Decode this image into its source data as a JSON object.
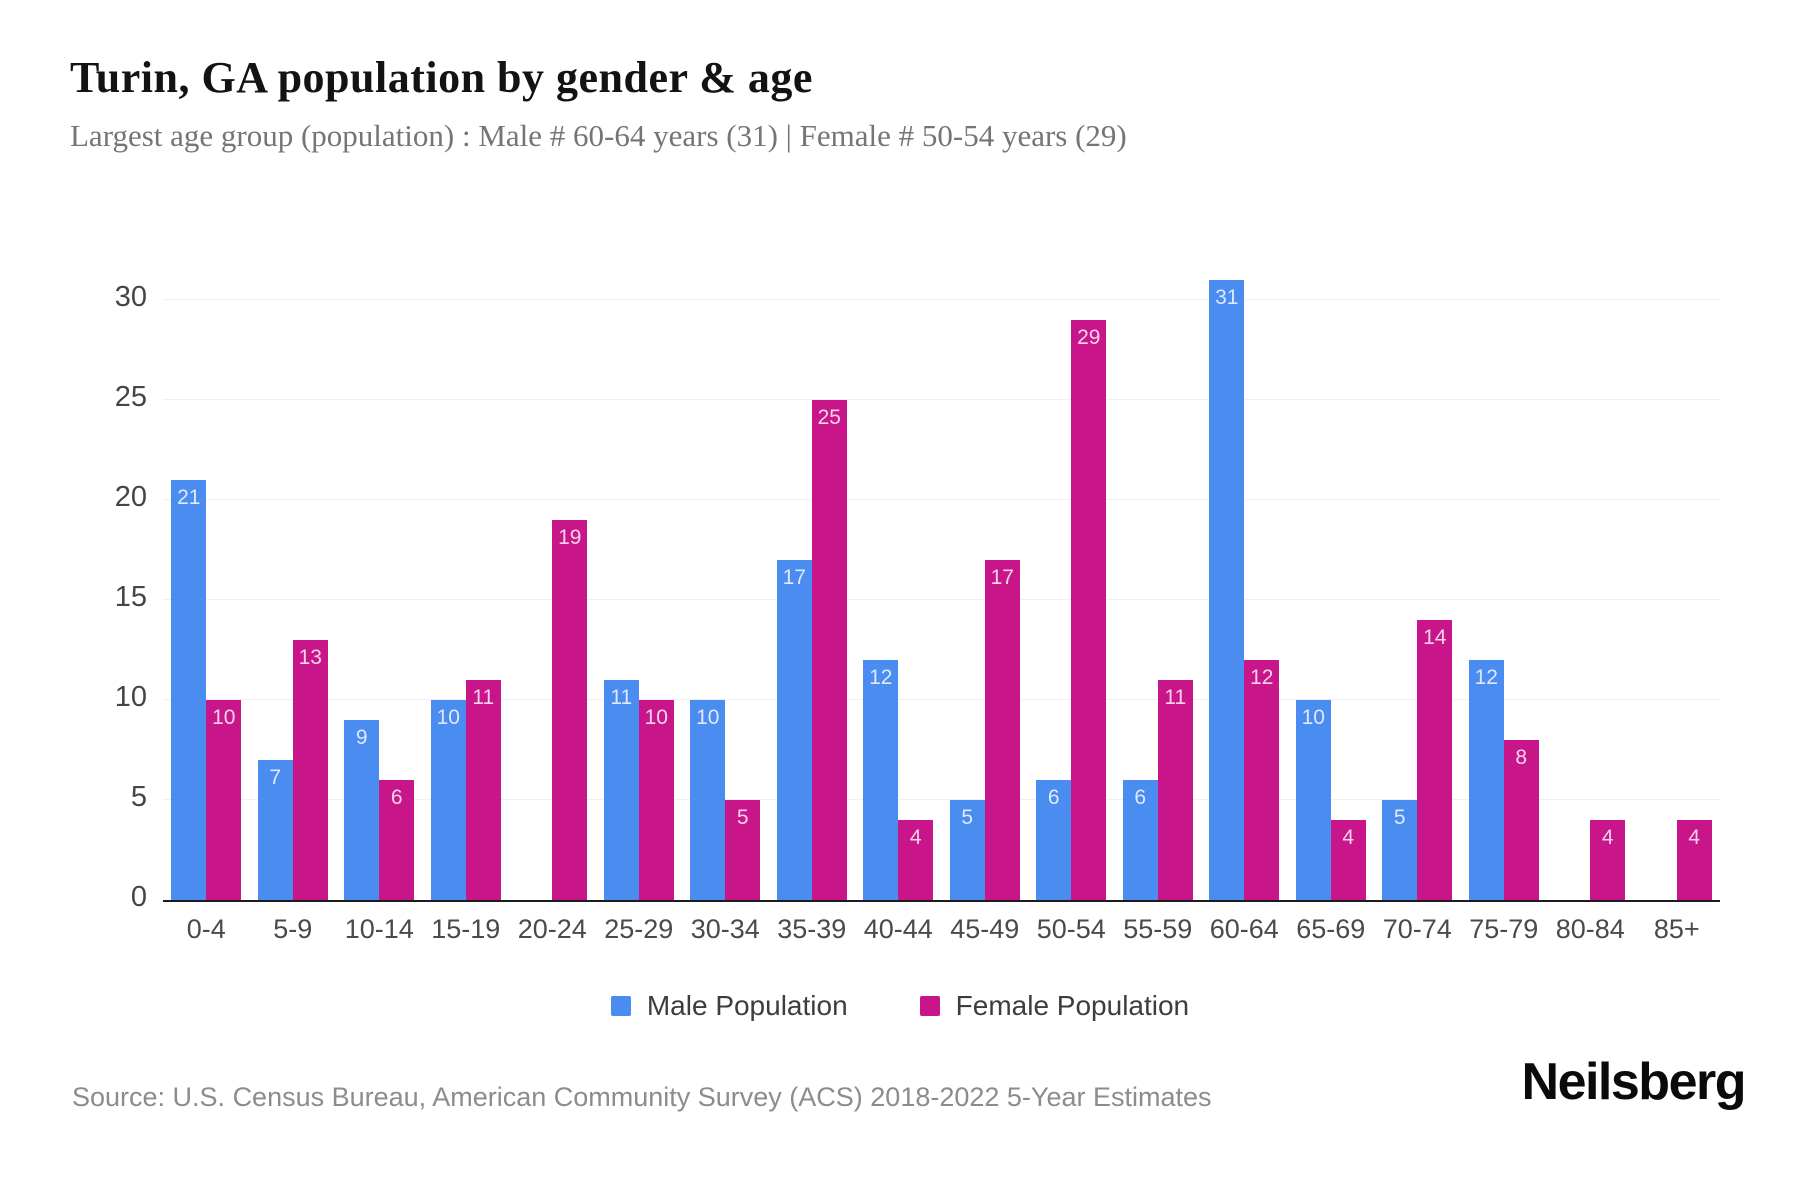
{
  "header": {
    "title": "Turin, GA population by gender & age",
    "subtitle": "Largest age group (population) : Male # 60-64 years (31) | Female # 50-54 years (29)"
  },
  "chart_data": {
    "type": "bar",
    "title": "Turin, GA population by gender & age",
    "categories": [
      "0-4",
      "5-9",
      "10-14",
      "15-19",
      "20-24",
      "25-29",
      "30-34",
      "35-39",
      "40-44",
      "45-49",
      "50-54",
      "55-59",
      "60-64",
      "65-69",
      "70-74",
      "75-79",
      "80-84",
      "85+"
    ],
    "series": [
      {
        "name": "Male Population",
        "color": "#4a8cf0",
        "values": [
          21,
          7,
          9,
          10,
          0,
          11,
          10,
          17,
          12,
          5,
          6,
          6,
          31,
          10,
          5,
          12,
          0,
          0
        ]
      },
      {
        "name": "Female Population",
        "color": "#c9158a",
        "values": [
          10,
          13,
          6,
          11,
          19,
          10,
          5,
          25,
          4,
          17,
          29,
          11,
          12,
          4,
          14,
          8,
          4,
          4
        ]
      }
    ],
    "xlabel": "",
    "ylabel": "",
    "ylim": [
      0,
      30
    ],
    "yticks": [
      0,
      5,
      10,
      15,
      20,
      25,
      30
    ],
    "grid": "horizontal",
    "legend_position": "bottom",
    "value_labels": "inside-top"
  },
  "footer": {
    "source": "Source: U.S. Census Bureau, American Community Survey (ACS) 2018-2022 5-Year Estimates",
    "brand": "Neilsberg"
  }
}
